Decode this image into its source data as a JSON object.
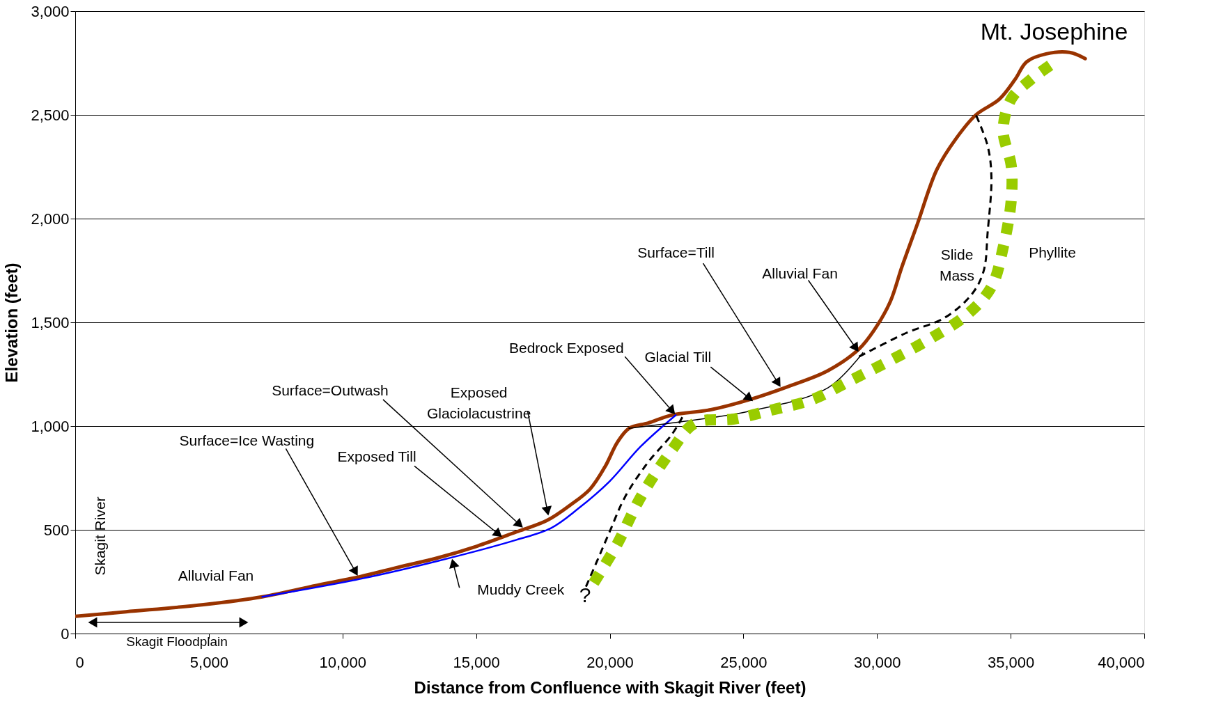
{
  "chart_data": {
    "type": "line",
    "xlabel": "Distance from Confluence with Skagit River (feet)",
    "ylabel": "Elevation (feet)",
    "xlim": [
      0,
      40000
    ],
    "xticks": [
      0,
      {
        "value": 5000,
        "label": "5,000"
      },
      {
        "value": 10000,
        "label": "10,000"
      },
      {
        "value": 15000,
        "label": "15,000"
      },
      {
        "value": 20000,
        "label": "20,000"
      },
      {
        "value": 25000,
        "label": "25,000"
      },
      {
        "value": 30000,
        "label": "30,000"
      },
      {
        "value": 35000,
        "label": "35,000"
      },
      {
        "value": 40000,
        "label": "40,000"
      }
    ],
    "ylim": [
      0,
      3000
    ],
    "yticks": [
      0,
      500,
      {
        "value": 1000,
        "label": "1,000"
      },
      {
        "value": 1500,
        "label": "1,500"
      },
      {
        "value": 2000,
        "label": "2,000"
      },
      {
        "value": 2500,
        "label": "2,500"
      },
      {
        "value": 3000,
        "label": "3,000"
      }
    ],
    "grid": "y",
    "series": [
      {
        "color": "#993300",
        "line_style": "solid",
        "x": [
          0,
          1900,
          4800,
          7000,
          9200,
          10650,
          12100,
          13570,
          15030,
          16490,
          17650,
          18530,
          19260,
          19840,
          20280,
          20720,
          21440,
          22320,
          23780,
          25240,
          26700,
          28160,
          29330,
          29910,
          30490,
          30930,
          31510,
          32240,
          32970,
          33700,
          34580,
          35160,
          35600,
          36330,
          37200,
          37790
        ],
        "values": [
          83,
          105,
          139,
          177,
          237,
          274,
          320,
          365,
          421,
          489,
          545,
          620,
          696,
          808,
          921,
          989,
          1015,
          1053,
          1079,
          1128,
          1192,
          1267,
          1372,
          1466,
          1598,
          1767,
          1974,
          2237,
          2388,
          2500,
          2576,
          2670,
          2756,
          2794,
          2801,
          2771
        ]
      },
      {
        "color": "#0000ff",
        "line_style": "solid",
        "x": [
          7000,
          10650,
          13570,
          16490,
          17800,
          18820,
          19990,
          21160,
          22470
        ],
        "values": [
          177,
          263,
          350,
          451,
          508,
          602,
          733,
          902,
          1053
        ]
      },
      {
        "color": "#000000",
        "line_style": "solid",
        "x": [
          20720,
          22320,
          25240,
          28160,
          29470
        ],
        "values": [
          989,
          1015,
          1072,
          1184,
          1354
        ]
      },
      {
        "color": "#000000",
        "line_style": "dashed",
        "x": [
          19110,
          19550,
          19990,
          20570,
          21440,
          22320,
          22760
        ],
        "values": [
          226,
          357,
          489,
          658,
          827,
          959,
          1053
        ]
      },
      {
        "color": "#000000",
        "line_style": "dashed",
        "x": [
          29330,
          31080,
          32540,
          33550,
          33990,
          34140,
          34280,
          34140,
          33700
        ],
        "values": [
          1335,
          1448,
          1523,
          1636,
          1748,
          1936,
          2200,
          2350,
          2500
        ]
      },
      {
        "color": "#99cc00",
        "line_style": "dotted",
        "x": [
          19400,
          20280,
          21160,
          22320,
          23200,
          24650,
          26110,
          27580,
          29040,
          30490,
          31950,
          33410,
          34290,
          34720,
          35020,
          35020,
          34720,
          35020,
          35750,
          36770
        ],
        "values": [
          244,
          432,
          658,
          884,
          1015,
          1034,
          1079,
          1128,
          1222,
          1316,
          1418,
          1542,
          1673,
          1861,
          2087,
          2256,
          2425,
          2576,
          2670,
          2764
        ]
      }
    ],
    "annotations": [
      {
        "text": "Mt. Josephine",
        "x": 37200,
        "y": 2801
      },
      {
        "text": "Surface=Ice Wasting",
        "x": 10590,
        "y": 274
      },
      {
        "text": "Exposed Till",
        "x": 16000,
        "y": 462
      },
      {
        "text": "Surface=Outwash",
        "x": 16780,
        "y": 507
      },
      {
        "text": "Exposed\nGlaciolacustrine",
        "x": 17710,
        "y": 564
      },
      {
        "text": "Bedrock Exposed",
        "x": 22470,
        "y": 1053
      },
      {
        "text": "Glacial Till",
        "x": 25390,
        "y": 1117
      },
      {
        "text": "Surface=Till",
        "x": 26410,
        "y": 1184
      },
      {
        "text": "Alluvial Fan",
        "x": 29330,
        "y": 1354
      },
      {
        "text": "Muddy Creek",
        "x": 14090,
        "y": 365
      },
      "?",
      "Alluvial Fan",
      "Skagit River",
      "Skagit Floodplain",
      "Slide\nMass",
      "Phyllite"
    ]
  }
}
